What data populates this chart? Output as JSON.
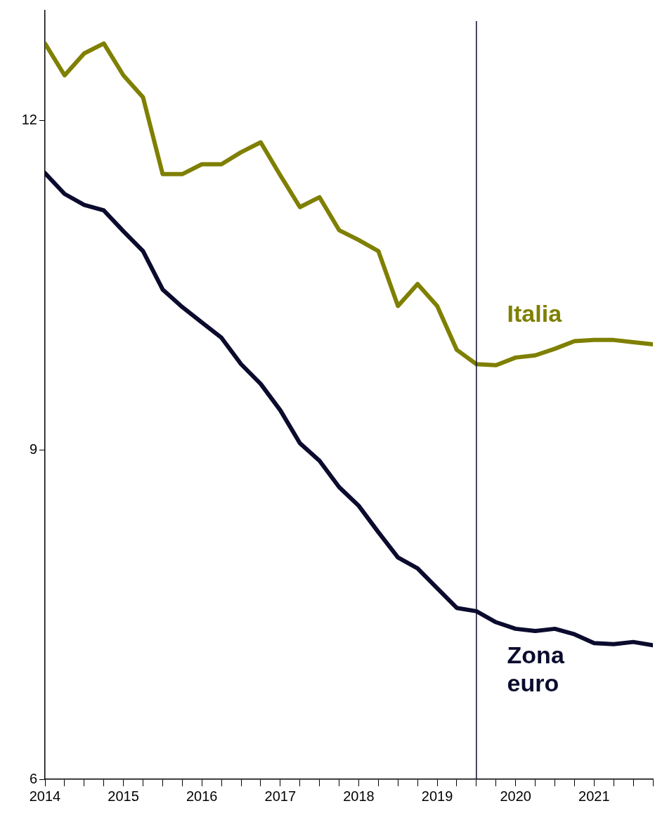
{
  "chart_data": {
    "type": "line",
    "x": [
      2014,
      2014.25,
      2014.5,
      2014.75,
      2015,
      2015.25,
      2015.5,
      2015.75,
      2016,
      2016.25,
      2016.5,
      2016.75,
      2017,
      2017.25,
      2017.5,
      2017.75,
      2018,
      2018.25,
      2018.5,
      2018.75,
      2019,
      2019.25,
      2019.5,
      2019.75,
      2020,
      2020.25,
      2020.5,
      2020.75,
      2021,
      2021.25,
      2021.5,
      2021.75
    ],
    "series": [
      {
        "name": "Italia",
        "color": "#7f7f00",
        "values": [
          12.7,
          12.41,
          12.61,
          12.7,
          12.41,
          12.21,
          11.51,
          11.51,
          11.6,
          11.6,
          11.71,
          11.8,
          11.5,
          11.21,
          11.3,
          11.0,
          10.91,
          10.81,
          10.31,
          10.51,
          10.31,
          9.91,
          9.78,
          9.77,
          9.84,
          9.86,
          9.92,
          9.99,
          10.0,
          10.0,
          9.98,
          9.96
        ]
      },
      {
        "name": "Zona euro",
        "color": "#0b0b2e",
        "values": [
          11.52,
          11.33,
          11.23,
          11.18,
          10.99,
          10.81,
          10.46,
          10.3,
          10.16,
          10.02,
          9.78,
          9.6,
          9.36,
          9.06,
          8.9,
          8.66,
          8.49,
          8.25,
          8.02,
          7.92,
          7.74,
          7.56,
          7.53,
          7.43,
          7.37,
          7.35,
          7.37,
          7.32,
          7.24,
          7.23,
          7.25,
          7.22
        ]
      }
    ],
    "xlim": [
      2014,
      2021.75
    ],
    "xticks": [
      2014,
      {
        "value": 2014.25,
        "label": null
      },
      {
        "value": 2014.5,
        "label": null
      },
      {
        "value": 2014.75,
        "label": null
      },
      2015,
      {
        "value": 2015.25,
        "label": null
      },
      {
        "value": 2015.5,
        "label": null
      },
      {
        "value": 2015.75,
        "label": null
      },
      2016,
      {
        "value": 2016.25,
        "label": null
      },
      {
        "value": 2016.5,
        "label": null
      },
      {
        "value": 2016.75,
        "label": null
      },
      2017,
      {
        "value": 2017.25,
        "label": null
      },
      {
        "value": 2017.5,
        "label": null
      },
      {
        "value": 2017.75,
        "label": null
      },
      2018,
      {
        "value": 2018.25,
        "label": null
      },
      {
        "value": 2018.5,
        "label": null
      },
      {
        "value": 2018.75,
        "label": null
      },
      2019,
      {
        "value": 2019.25,
        "label": null
      },
      {
        "value": 2019.5,
        "label": null
      },
      {
        "value": 2019.75,
        "label": null
      },
      2020,
      {
        "value": 2020.25,
        "label": null
      },
      {
        "value": 2020.5,
        "label": null
      },
      {
        "value": 2020.75,
        "label": null
      },
      2021,
      {
        "value": 2021.25,
        "label": null
      },
      {
        "value": 2021.5,
        "label": null
      },
      {
        "value": 2021.75,
        "label": null
      }
    ],
    "ylim": [
      6,
      13
    ],
    "yticks": [
      6,
      9,
      12
    ],
    "ref_lines": [
      {
        "axis": "x",
        "value": 2019.5,
        "color": "#0b0b2e"
      }
    ],
    "grid": false,
    "legend": false,
    "marker": "none",
    "line_style": "solid"
  }
}
